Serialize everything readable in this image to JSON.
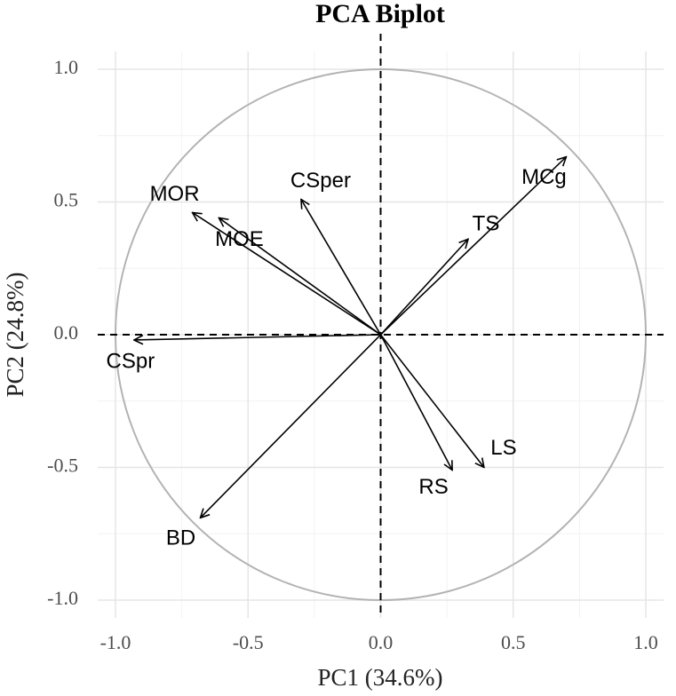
{
  "chart_data": {
    "type": "biplot",
    "title": "PCA Biplot",
    "x_label": "PC1 (34.6%)",
    "y_label": "PC2 (24.8%)",
    "variables": [
      "MCg",
      "TS",
      "CSper",
      "MOR",
      "MOE",
      "CSpr",
      "BD",
      "RS",
      "LS"
    ],
    "x": [
      0.7,
      0.33,
      -0.3,
      -0.71,
      -0.61,
      -0.93,
      -0.68,
      0.27,
      0.39
    ],
    "y": [
      0.67,
      0.36,
      0.51,
      0.46,
      0.44,
      -0.02,
      -0.69,
      -0.51,
      -0.5
    ],
    "color": "#000000",
    "xlim": [
      -1.0,
      1.0
    ],
    "ylim": [
      -1.0,
      1.0
    ],
    "xticks": [
      {
        "value": -1,
        "label": "-1.0"
      },
      -0.5,
      {
        "value": 0,
        "label": "0.0"
      },
      0.5,
      {
        "value": 1,
        "label": "1.0"
      }
    ],
    "yticks": [
      {
        "value": -1,
        "label": "-1.0"
      },
      -0.5,
      {
        "value": 0,
        "label": "0.0"
      },
      0.5,
      {
        "value": 1,
        "label": "1.0"
      }
    ],
    "grid": true,
    "minor_grid": true,
    "circle_radius": 1,
    "circle_color": "#b3b3b3",
    "hline": 0,
    "vline": 0
  }
}
